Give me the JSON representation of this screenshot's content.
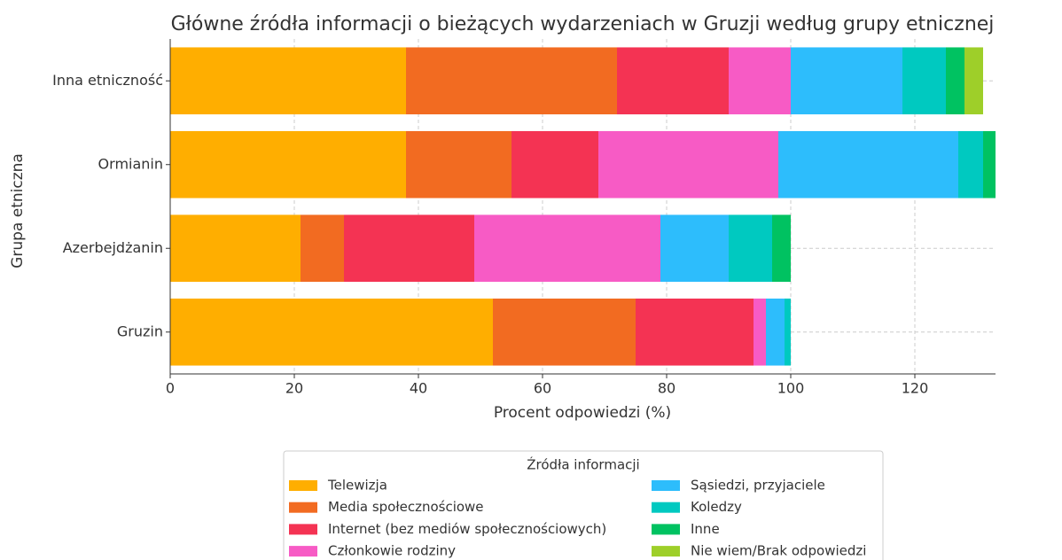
{
  "chart_data": {
    "type": "barh_stacked",
    "title": "Główne źródła informacji o bieżących wydarzeniach w Gruzji według grupy etnicznej",
    "xlabel": "Procent odpowiedzi (%)",
    "ylabel": "Grupa etniczna",
    "legend_title": "Źródła informacji",
    "legend": "lower center",
    "grid": true,
    "categories": [
      "Gruzin",
      "Azerbejdżanin",
      "Ormianin",
      "Inna etniczność"
    ],
    "series": [
      {
        "name": "Telewizja",
        "color": "#FFAE00",
        "values": [
          52,
          21,
          38,
          38
        ]
      },
      {
        "name": "Media społecznościowe",
        "color": "#F26B21",
        "values": [
          23,
          7,
          17,
          34
        ]
      },
      {
        "name": "Internet (bez mediów społecznościowych)",
        "color": "#F43353",
        "values": [
          19,
          21,
          14,
          18
        ]
      },
      {
        "name": "Członkowie rodziny",
        "color": "#F75BC5",
        "values": [
          2,
          30,
          29,
          10
        ]
      },
      {
        "name": "Sąsiedzi, przyjaciele",
        "color": "#2DBDFC",
        "values": [
          3,
          11,
          29,
          18
        ]
      },
      {
        "name": "Koledzy",
        "color": "#00C9C0",
        "values": [
          1,
          7,
          4,
          7
        ]
      },
      {
        "name": "Inne",
        "color": "#00C261",
        "values": [
          0,
          3,
          2,
          3
        ]
      },
      {
        "name": "Nie wiem/Brak odpowiedzi",
        "color": "#9ECF29",
        "values": [
          0,
          0,
          0,
          3
        ]
      }
    ],
    "xlim": [
      0,
      133
    ],
    "xticks": [
      0,
      20,
      40,
      60,
      80,
      100,
      120
    ]
  }
}
